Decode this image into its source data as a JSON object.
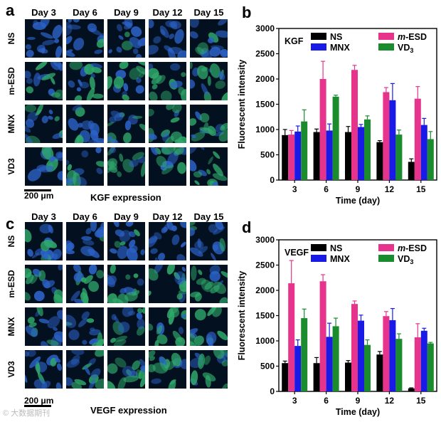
{
  "panels": {
    "a": {
      "letter": "a",
      "expression": "KGF expression",
      "scale": "200 μm"
    },
    "c": {
      "letter": "c",
      "expression": "VEGF expression",
      "scale": "200 μm"
    },
    "days": [
      "Day 3",
      "Day 6",
      "Day 9",
      "Day 12",
      "Day 15"
    ],
    "rows": [
      "NS",
      "m-ESD",
      "MNX",
      "VD3"
    ]
  },
  "colors": {
    "NS": "#000000",
    "m-ESD": "#e6338c",
    "MNX": "#1a1ae6",
    "VD3": "#1a8c2e"
  },
  "watermark": "© 大数据期刊",
  "chart_data": [
    {
      "panel": "b",
      "type": "bar",
      "inset_label": "KGF",
      "xlabel": "Time (day)",
      "ylabel": "Fluorescent intensity",
      "categories": [
        "3",
        "6",
        "9",
        "12",
        "15"
      ],
      "ylim": [
        0,
        3000
      ],
      "yticks": [
        0,
        500,
        1000,
        1500,
        2000,
        2500,
        3000
      ],
      "legend": [
        "NS",
        "m-ESD",
        "MNX",
        "VD3"
      ],
      "series": [
        {
          "name": "NS",
          "values": [
            890,
            950,
            950,
            750,
            360
          ],
          "errors": [
            110,
            60,
            110,
            30,
            60
          ]
        },
        {
          "name": "m-ESD",
          "values": [
            900,
            2000,
            2180,
            1740,
            1610
          ],
          "errors": [
            80,
            350,
            90,
            90,
            240
          ]
        },
        {
          "name": "MNX",
          "values": [
            960,
            980,
            1050,
            1580,
            1090
          ],
          "errors": [
            110,
            130,
            50,
            330,
            130
          ]
        },
        {
          "name": "VD3",
          "values": [
            1160,
            1650,
            1200,
            900,
            810
          ],
          "errors": [
            230,
            30,
            70,
            90,
            150
          ]
        }
      ]
    },
    {
      "panel": "d",
      "type": "bar",
      "inset_label": "VEGF",
      "xlabel": "Time (day)",
      "ylabel": "Fluorescent intensity",
      "categories": [
        "3",
        "6",
        "9",
        "12",
        "15"
      ],
      "ylim": [
        0,
        3000
      ],
      "yticks": [
        0,
        500,
        1000,
        1500,
        2000,
        2500,
        3000
      ],
      "legend": [
        "NS",
        "m-ESD",
        "MNX",
        "VD3"
      ],
      "series": [
        {
          "name": "NS",
          "values": [
            560,
            560,
            570,
            730,
            60
          ],
          "errors": [
            40,
            110,
            40,
            60,
            10
          ]
        },
        {
          "name": "m-ESD",
          "values": [
            2140,
            2180,
            1730,
            1490,
            1070
          ],
          "errors": [
            450,
            130,
            60,
            90,
            270
          ]
        },
        {
          "name": "MNX",
          "values": [
            900,
            1080,
            1400,
            1410,
            1200
          ],
          "errors": [
            120,
            270,
            110,
            230,
            50
          ]
        },
        {
          "name": "VD3",
          "values": [
            1450,
            1290,
            920,
            1040,
            950
          ],
          "errors": [
            180,
            160,
            100,
            100,
            20
          ]
        }
      ]
    }
  ]
}
